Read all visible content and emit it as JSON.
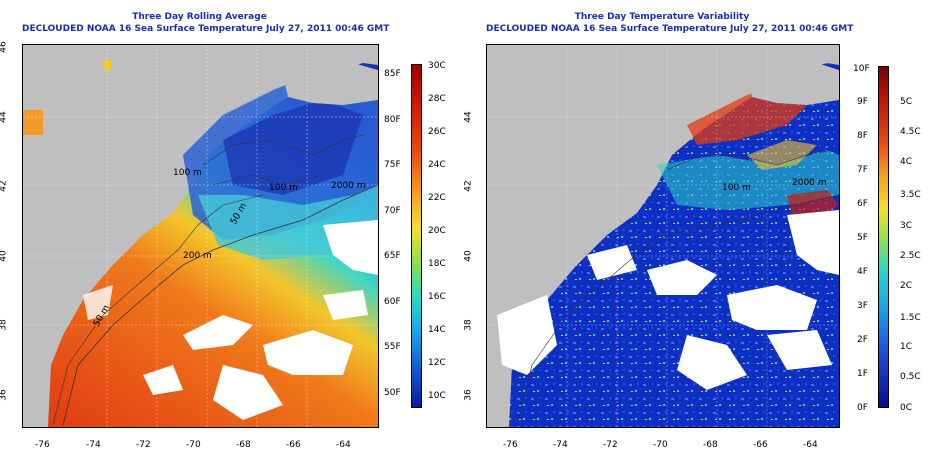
{
  "left_panel": {
    "title": "Three Day Rolling Average",
    "subtitle": "DECLOUDED NOAA 16 Sea Surface Temperature July 27, 2011 00:46 GMT",
    "x_ticks": [
      "-76",
      "-74",
      "-72",
      "-70",
      "-68",
      "-66",
      "-64"
    ],
    "y_ticks": [
      "46",
      "44",
      "42",
      "40",
      "38",
      "36"
    ],
    "contour_labels": [
      "100 m",
      "2000 m",
      "50 m",
      "200 m",
      "100 m",
      "50 m"
    ],
    "colorbar_f": [
      "85F",
      "80F",
      "75F",
      "70F",
      "65F",
      "60F",
      "55F",
      "50F"
    ],
    "colorbar_c": [
      "30C",
      "28C",
      "26C",
      "24C",
      "22C",
      "20C",
      "18C",
      "16C",
      "14C",
      "12C",
      "10C"
    ]
  },
  "right_panel": {
    "title": "Three Day Temperature Variability",
    "subtitle": "DECLOUDED NOAA 16 Sea Surface Temperature July 27, 2011 00:46 GMT",
    "x_ticks": [
      "-76",
      "-74",
      "-72",
      "-70",
      "-68",
      "-66",
      "-64"
    ],
    "y_ticks": [
      "44",
      "42",
      "40",
      "38",
      "36"
    ],
    "contour_labels": [
      "100 m",
      "2000 m"
    ],
    "colorbar_f": [
      "10F",
      "9F",
      "8F",
      "7F",
      "6F",
      "5F",
      "4F",
      "3F",
      "2F",
      "1F",
      "0F"
    ],
    "colorbar_c": [
      "5C",
      "4.5C",
      "4C",
      "3.5C",
      "3C",
      "2.5C",
      "2C",
      "1.5C",
      "1C",
      "0.5C",
      "0C"
    ]
  },
  "colors": {
    "title": "#1a2fb0",
    "land": "#bfbfbf",
    "cloud": "#ffffff"
  }
}
